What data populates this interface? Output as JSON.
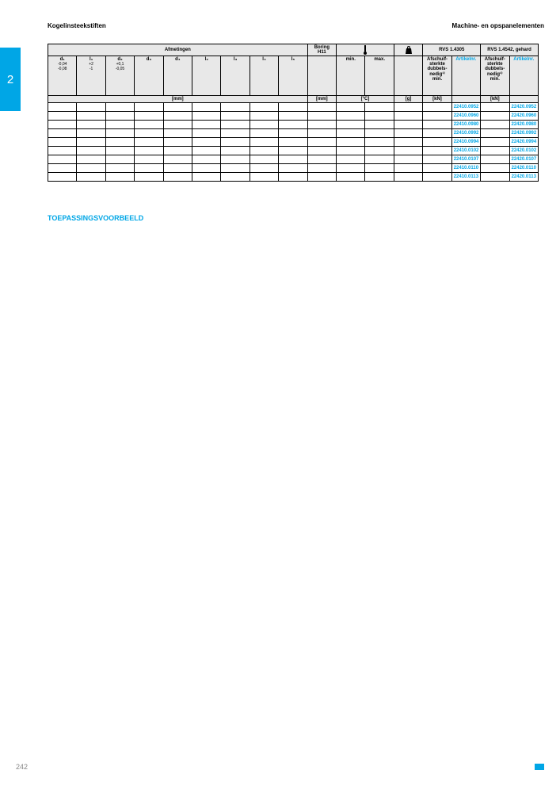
{
  "header": {
    "left": "Kogelinsteekstiften",
    "right": "Machine- en opspanelementen"
  },
  "chapter": "2",
  "section_title": "TOEPASSINGSVOORBEELD",
  "page_number": "242",
  "colors": {
    "accent": "#00a6e6",
    "header_bg": "#e8e8e8",
    "text": "#000000",
    "muted": "#888888"
  },
  "table": {
    "group_headers": [
      {
        "label": "Afmetingen",
        "span": 9
      },
      {
        "label": "Boring\nH11",
        "span": 1
      },
      {
        "label": "temp_icon",
        "span": 2
      },
      {
        "label": "weight_icon",
        "span": 1
      },
      {
        "label": "RVS 1.4305",
        "span": 2
      },
      {
        "label": "RVS 1.4542, gehard",
        "span": 2
      }
    ],
    "columns": [
      {
        "label": "d₁",
        "sub": "-0,04\n-0,08"
      },
      {
        "label": "l₁",
        "sub": "+2\n-1"
      },
      {
        "label": "d₂",
        "sub": "+0,1\n-0,05"
      },
      {
        "label": "d₃",
        "sub": ""
      },
      {
        "label": "d₄",
        "sub": ""
      },
      {
        "label": "l₂",
        "sub": ""
      },
      {
        "label": "l₃",
        "sub": ""
      },
      {
        "label": "l₄",
        "sub": ""
      },
      {
        "label": "l₅",
        "sub": ""
      },
      {
        "label": "",
        "sub": ""
      },
      {
        "label": "min.",
        "sub": ""
      },
      {
        "label": "max.",
        "sub": ""
      },
      {
        "label": "",
        "sub": ""
      },
      {
        "label": "Afschuif-\nsterkte\ndubbels-\nnedig¹⁾\nmin.",
        "sub": ""
      },
      {
        "label": "Artikelnr.",
        "sub": "",
        "link": true
      },
      {
        "label": "Afschuif-\nsterkte\ndubbels-\nnedig¹⁾\nmin.",
        "sub": ""
      },
      {
        "label": "Artikelnr.",
        "sub": "",
        "link": true
      }
    ],
    "units": [
      "[mm]",
      "",
      "",
      "",
      "",
      "",
      "",
      "",
      "",
      "[mm]",
      "[°C]",
      "",
      "[g]",
      "[kN]",
      "",
      "[kN]",
      ""
    ],
    "unit_spans": [
      9,
      1,
      2,
      1,
      1,
      1,
      1,
      1
    ],
    "unit_labels": [
      "[mm]",
      "[mm]",
      "[°C]",
      "[g]",
      "[kN]",
      "",
      "[kN]",
      ""
    ],
    "rows": [
      {
        "art1": "22410.0952",
        "art2": "22420.0952"
      },
      {
        "art1": "22410.0960",
        "art2": "22420.0960"
      },
      {
        "art1": "22410.0980",
        "art2": "22420.0980"
      },
      {
        "art1": "22410.0992",
        "art2": "22420.0992"
      },
      {
        "art1": "22410.0994",
        "art2": "22420.0994"
      },
      {
        "art1": "22410.0102",
        "art2": "22420.0102"
      },
      {
        "art1": "22410.0107",
        "art2": "22420.0107"
      },
      {
        "art1": "22410.0110",
        "art2": "22420.0110"
      },
      {
        "art1": "22410.0113",
        "art2": "22420.0113"
      }
    ]
  }
}
